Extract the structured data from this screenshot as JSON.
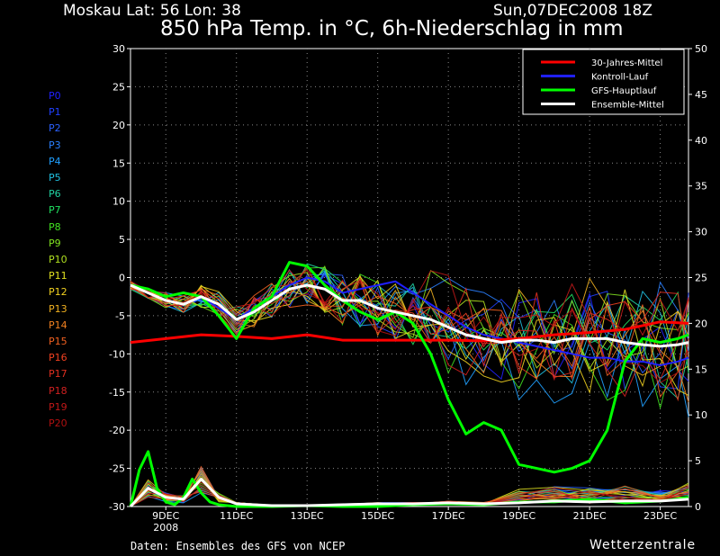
{
  "header": {
    "location": "Moskau   Lat: 56 Lon: 38",
    "run": "Sun,07DEC2008 18Z",
    "title": "850 hPa Temp. in °C, 6h-Niederschlag in mm"
  },
  "members": [
    "P0",
    "P1",
    "P2",
    "P3",
    "P4",
    "P5",
    "P6",
    "P7",
    "P8",
    "P9",
    "P10",
    "P11",
    "P12",
    "P13",
    "P14",
    "P15",
    "P16",
    "P17",
    "P18",
    "P19",
    "P20"
  ],
  "member_colors": [
    "#2020ff",
    "#2040ff",
    "#2a60ff",
    "#2a80ff",
    "#20a0ff",
    "#20c0e0",
    "#20d0a0",
    "#20e060",
    "#40e020",
    "#80e020",
    "#b0e020",
    "#e0e020",
    "#f0d020",
    "#f0b020",
    "#f08020",
    "#f06020",
    "#f04020",
    "#e03020",
    "#d02020",
    "#c01818",
    "#b01010"
  ],
  "footer": {
    "source": "Daten: Ensembles des GFS von NCEP",
    "brand": "Wetterzentrale"
  },
  "chart_data": {
    "type": "line",
    "x_labels": [
      "9DEC",
      "11DEC",
      "13DEC",
      "15DEC",
      "17DEC",
      "19DEC",
      "21DEC",
      "23DEC"
    ],
    "x_year_label": "2008",
    "x_range_days": [
      8,
      23.8
    ],
    "y_left": {
      "range": [
        -30,
        30
      ],
      "ticks": [
        -30,
        -25,
        -20,
        -15,
        -10,
        -5,
        0,
        5,
        10,
        15,
        20,
        25,
        30
      ]
    },
    "y_right": {
      "range": [
        0,
        50
      ],
      "ticks": [
        0,
        5,
        10,
        15,
        20,
        25,
        30,
        35,
        40,
        45,
        50
      ]
    },
    "grid": true,
    "legend_position": "top-right",
    "legend": [
      {
        "name": "30-Jahres-Mittel",
        "color": "#ff0000"
      },
      {
        "name": "Kontroll-Lauf",
        "color": "#2020ff"
      },
      {
        "name": "GFS-Hauptlauf",
        "color": "#00ff00"
      },
      {
        "name": "Ensemble-Mittel",
        "color": "#ffffff"
      }
    ],
    "climatology_mean": {
      "x": [
        8,
        9,
        10,
        11,
        12,
        13,
        14,
        15,
        16,
        17,
        18,
        19,
        20,
        21,
        22,
        23,
        23.8
      ],
      "y": [
        -8.5,
        -8.0,
        -7.5,
        -7.7,
        -8.0,
        -7.5,
        -8.2,
        -8.2,
        -8.2,
        -8.2,
        -8.3,
        -8.0,
        -7.5,
        -7.2,
        -6.8,
        -5.8,
        -6.0
      ]
    },
    "ensemble_mean": {
      "x": [
        8,
        8.5,
        9,
        9.5,
        10,
        10.5,
        11,
        11.5,
        12,
        12.5,
        13,
        13.5,
        14,
        14.5,
        15,
        15.5,
        16,
        16.5,
        17,
        17.5,
        18,
        18.5,
        19,
        19.5,
        20,
        20.5,
        21,
        21.5,
        22,
        22.5,
        23,
        23.5,
        23.8
      ],
      "y": [
        -1,
        -2,
        -3,
        -3.5,
        -2.5,
        -3.5,
        -5.5,
        -4.5,
        -3,
        -1.5,
        -1,
        -1.5,
        -3,
        -3,
        -4,
        -4.5,
        -5,
        -5.5,
        -6.5,
        -7.5,
        -8,
        -8.5,
        -8.2,
        -8.2,
        -8.5,
        -8,
        -8,
        -8,
        -8.5,
        -8.8,
        -9,
        -8.8,
        -8.5
      ]
    },
    "gfs_main_run": {
      "x": [
        8,
        8.5,
        9,
        9.5,
        10,
        10.5,
        11,
        11.5,
        12,
        12.5,
        13,
        13.5,
        14,
        14.5,
        15,
        15.5,
        16,
        16.5,
        17,
        17.5,
        18,
        18.5,
        19,
        19.5,
        20,
        20.5,
        21,
        21.5,
        22,
        22.5,
        23,
        23.5,
        23.8
      ],
      "y": [
        -1,
        -1.5,
        -2.5,
        -2,
        -2.5,
        -5,
        -8,
        -4,
        -2.5,
        2,
        1.5,
        -1,
        -3,
        -4.5,
        -5.5,
        -4.5,
        -6,
        -10,
        -16,
        -20.5,
        -19,
        -20,
        -24.5,
        -25,
        -25.5,
        -25,
        -24,
        -20,
        -11,
        -8,
        -8.5,
        -8,
        -7.5
      ]
    },
    "control_run": {
      "x": [
        8,
        8.5,
        9,
        9.5,
        10,
        10.5,
        11,
        11.5,
        12,
        12.5,
        13,
        13.5,
        14,
        14.5,
        15,
        15.5,
        16,
        16.5,
        17,
        17.5,
        18,
        18.5,
        19,
        19.5,
        20,
        20.5,
        21,
        21.5,
        22,
        22.5,
        23,
        23.5,
        23.8
      ],
      "y": [
        -1,
        -2,
        -3,
        -3.5,
        -2.5,
        -4,
        -5.5,
        -4,
        -2.5,
        -1,
        0,
        -0.5,
        -2,
        -1.5,
        -1,
        -0.5,
        -2,
        -3.5,
        -5,
        -6.5,
        -7.5,
        -8,
        -8.5,
        -9,
        -9.5,
        -10,
        -10.5,
        -10.5,
        -11,
        -11,
        -11.5,
        -11,
        -10.5
      ]
    },
    "precip_gfs_main_run_mm": {
      "x": [
        8,
        8.25,
        8.5,
        8.75,
        9,
        9.25,
        9.5,
        9.75,
        10,
        10.25,
        10.5,
        11,
        12,
        13,
        14,
        15,
        16,
        17,
        18,
        19,
        20,
        21,
        22,
        23,
        23.5,
        23.8
      ],
      "y": [
        0,
        4,
        6,
        2,
        0.5,
        0.2,
        1,
        3,
        1.5,
        0.5,
        0.2,
        0,
        0,
        0.1,
        0,
        0,
        0.2,
        0.3,
        0.2,
        0.5,
        0.5,
        0.8,
        0.4,
        0.6,
        0.8,
        1
      ]
    },
    "precip_ensemble_mean_mm": {
      "x": [
        8,
        8.5,
        9,
        9.5,
        10,
        10.5,
        11,
        12,
        13,
        14,
        15,
        16,
        17,
        18,
        19,
        20,
        21,
        22,
        23,
        23.8
      ],
      "y": [
        0,
        2,
        1,
        0.8,
        3,
        1,
        0.3,
        0.1,
        0.1,
        0.2,
        0.3,
        0.3,
        0.4,
        0.3,
        0.4,
        0.6,
        0.5,
        0.6,
        0.6,
        0.8
      ]
    }
  }
}
